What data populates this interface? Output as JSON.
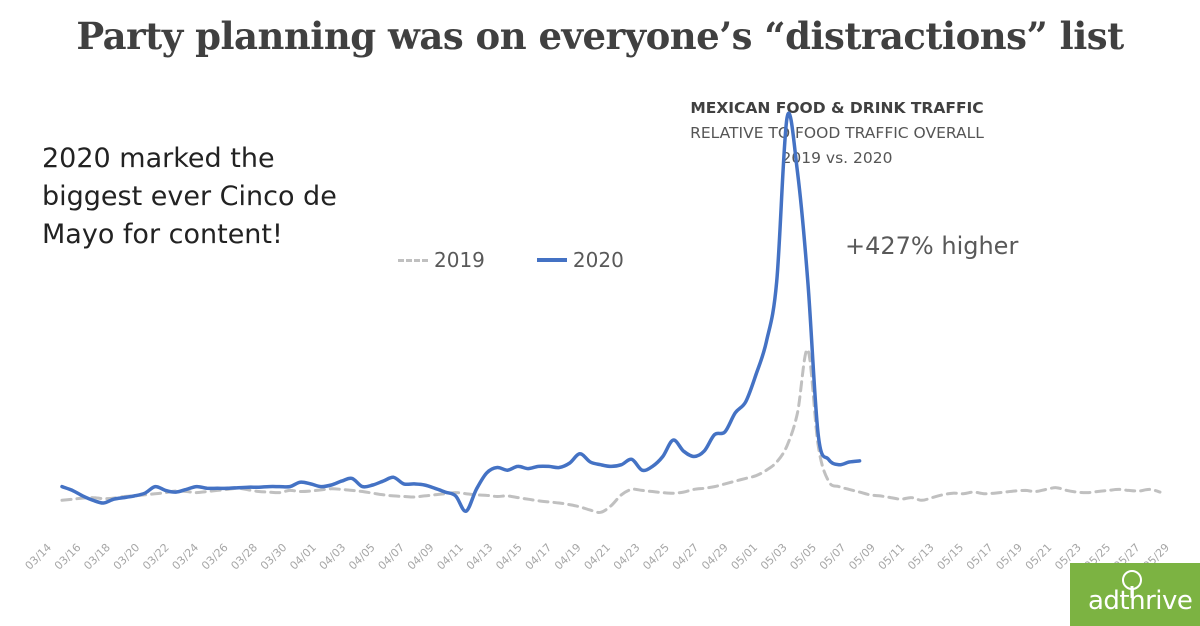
{
  "headline": "Party planning was on everyone’s “distractions” list",
  "callout": "2020 marked the biggest ever Cinco de Mayo for content!",
  "logo": {
    "text": "adthrive",
    "color": "#7cb342"
  },
  "chart_data": {
    "type": "line",
    "title": "MEXICAN FOOD & DRINK TRAFFIC",
    "subtitle": "RELATIVE TO FOOD TRAFFIC OVERALL",
    "subtitle2": "2019 vs. 2020",
    "annotation": "+427% higher",
    "xlabel": "",
    "ylabel": "",
    "grid": false,
    "legend": "top-center",
    "x_ticks": [
      "03/14",
      "03/16",
      "03/18",
      "03/20",
      "03/22",
      "03/24",
      "03/26",
      "03/28",
      "03/30",
      "04/01",
      "04/03",
      "04/05",
      "04/07",
      "04/09",
      "04/11",
      "04/13",
      "04/15",
      "04/17",
      "04/19",
      "04/21",
      "04/23",
      "04/25",
      "04/27",
      "04/29",
      "05/01",
      "05/03",
      "05/05",
      "05/07",
      "05/09",
      "05/11",
      "05/13",
      "05/15",
      "05/17",
      "05/19",
      "05/21",
      "05/23",
      "05/25",
      "05/27",
      "05/29"
    ],
    "series": [
      {
        "name": "2019",
        "style": "dashed",
        "color": "#c0c0c0",
        "values": [
          1.0,
          1.02,
          1.04,
          1.05,
          1.03,
          1.04,
          1.07,
          1.08,
          1.1,
          1.12,
          1.14,
          1.17,
          1.16,
          1.14,
          1.16,
          1.18,
          1.2,
          1.22,
          1.19,
          1.16,
          1.15,
          1.14,
          1.18,
          1.16,
          1.17,
          1.19,
          1.21,
          1.2,
          1.18,
          1.16,
          1.13,
          1.1,
          1.08,
          1.07,
          1.06,
          1.08,
          1.1,
          1.12,
          1.14,
          1.12,
          1.1,
          1.09,
          1.07,
          1.08,
          1.05,
          1.02,
          0.99,
          0.97,
          0.95,
          0.92,
          0.88,
          0.82,
          0.78,
          0.9,
          1.1,
          1.2,
          1.18,
          1.16,
          1.14,
          1.13,
          1.15,
          1.2,
          1.22,
          1.25,
          1.3,
          1.35,
          1.4,
          1.45,
          1.55,
          1.7,
          2.0,
          2.6,
          3.75,
          2.0,
          1.35,
          1.25,
          1.2,
          1.15,
          1.1,
          1.08,
          1.05,
          1.02,
          1.05,
          1.0,
          1.05,
          1.1,
          1.13,
          1.12,
          1.15,
          1.12,
          1.13,
          1.15,
          1.17,
          1.18,
          1.16,
          1.2,
          1.23,
          1.18,
          1.15,
          1.14,
          1.16,
          1.18,
          1.2,
          1.18,
          1.17,
          1.2,
          1.15
        ]
      },
      {
        "name": "2020",
        "style": "solid",
        "color": "#4472c4",
        "values": [
          1.25,
          1.18,
          1.08,
          1.0,
          0.95,
          1.02,
          1.05,
          1.08,
          1.13,
          1.25,
          1.18,
          1.15,
          1.2,
          1.25,
          1.22,
          1.22,
          1.22,
          1.23,
          1.24,
          1.24,
          1.25,
          1.25,
          1.25,
          1.33,
          1.3,
          1.25,
          1.28,
          1.35,
          1.4,
          1.25,
          1.28,
          1.35,
          1.42,
          1.3,
          1.3,
          1.28,
          1.22,
          1.15,
          1.08,
          0.8,
          1.2,
          1.5,
          1.6,
          1.55,
          1.62,
          1.58,
          1.62,
          1.62,
          1.6,
          1.68,
          1.85,
          1.7,
          1.65,
          1.62,
          1.65,
          1.75,
          1.55,
          1.62,
          1.8,
          2.1,
          1.9,
          1.8,
          1.9,
          2.2,
          2.25,
          2.6,
          2.8,
          3.3,
          3.9,
          5.0,
          8.0,
          7.0,
          5.0,
          2.2,
          1.75,
          1.65,
          1.7,
          1.72
        ]
      }
    ],
    "ylim": [
      0,
      8.5
    ]
  }
}
